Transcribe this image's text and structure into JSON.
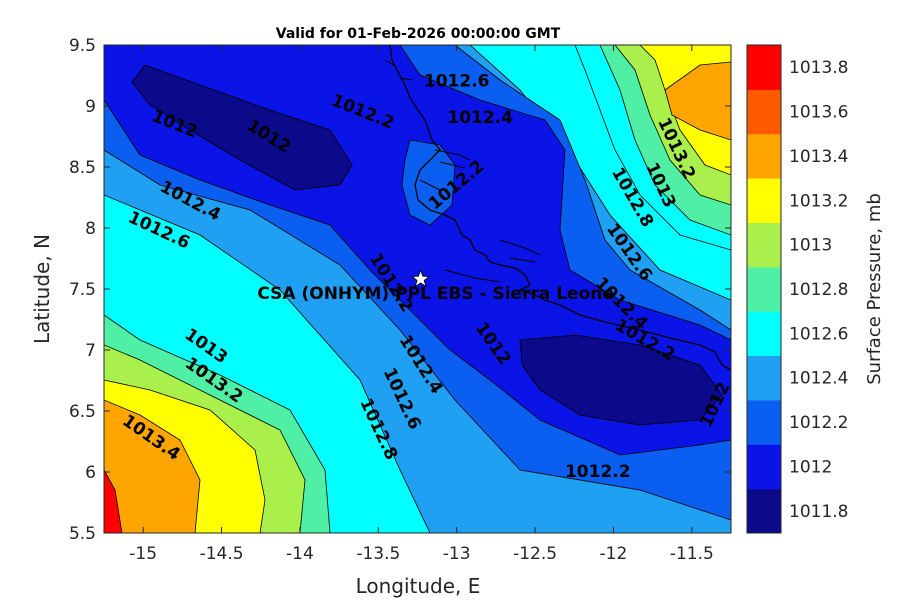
{
  "title": "Valid for 01-Feb-2026 00:00:00 GMT",
  "x_axis": {
    "label": "Longitude, E",
    "range": [
      -15.25,
      -11.25
    ],
    "ticks": [
      -15,
      -14.5,
      -14,
      -13.5,
      -13,
      -12.5,
      -12,
      -11.5
    ],
    "tick_labels": [
      "-15",
      "-14.5",
      "-14",
      "-13.5",
      "-13",
      "-12.5",
      "-12",
      "-11.5"
    ]
  },
  "y_axis": {
    "label": "Latitude, N",
    "range": [
      5.5,
      9.5
    ],
    "ticks": [
      5.5,
      6,
      6.5,
      7,
      7.5,
      8,
      8.5,
      9,
      9.5
    ],
    "tick_labels": [
      "5.5",
      "6",
      "6.5",
      "7",
      "7.5",
      "8",
      "8.5",
      "9",
      "9.5"
    ]
  },
  "colorbar": {
    "label": "Surface Pressure, mb",
    "levels": [
      1011.8,
      1012,
      1012.2,
      1012.4,
      1012.6,
      1012.8,
      1013,
      1013.2,
      1013.4,
      1013.6,
      1013.8
    ],
    "tick_labels": [
      "1011.8",
      "1012",
      "1012.2",
      "1012.4",
      "1012.6",
      "1012.8",
      "1013",
      "1013.2",
      "1013.4",
      "1013.6",
      "1013.8"
    ],
    "colors": [
      "#0a0a8a",
      "#0a14e6",
      "#0a5ff0",
      "#1fa0f2",
      "#00ffff",
      "#4ff0a6",
      "#aaf04c",
      "#ffff00",
      "#ffa500",
      "#ff5a00",
      "#ff0000"
    ]
  },
  "station": {
    "name": "CSA (ONHYM) PPL EBS  - Sierra Leone",
    "lon": -13.23,
    "lat": 7.58,
    "marker": "star-icon"
  },
  "contour_labels": [
    {
      "text": "1012.6",
      "lon": -13.0,
      "lat": 9.2,
      "rot": 0
    },
    {
      "text": "1012.4",
      "lon": -12.85,
      "lat": 8.9,
      "rot": 0
    },
    {
      "text": "1012.2",
      "lon": -13.6,
      "lat": 8.95,
      "rot": 22
    },
    {
      "text": "1012",
      "lon": -14.8,
      "lat": 8.85,
      "rot": 22
    },
    {
      "text": "1012",
      "lon": -14.2,
      "lat": 8.75,
      "rot": 32
    },
    {
      "text": "1012.2",
      "lon": -13.0,
      "lat": 8.35,
      "rot": -40
    },
    {
      "text": "1012.4",
      "lon": -14.7,
      "lat": 8.22,
      "rot": 28
    },
    {
      "text": "1012.6",
      "lon": -14.9,
      "lat": 7.98,
      "rot": 25
    },
    {
      "text": "1012.2",
      "lon": -13.42,
      "lat": 7.55,
      "rot": 58
    },
    {
      "text": "1012",
      "lon": -12.77,
      "lat": 7.05,
      "rot": 55
    },
    {
      "text": "1012.4",
      "lon": -13.23,
      "lat": 6.88,
      "rot": 58
    },
    {
      "text": "1012.6",
      "lon": -13.35,
      "lat": 6.6,
      "rot": 65
    },
    {
      "text": "1012.8",
      "lon": -13.5,
      "lat": 6.35,
      "rot": 65
    },
    {
      "text": "1013",
      "lon": -14.6,
      "lat": 7.03,
      "rot": 35
    },
    {
      "text": "1013.2",
      "lon": -14.55,
      "lat": 6.75,
      "rot": 35
    },
    {
      "text": "1013.4",
      "lon": -14.95,
      "lat": 6.28,
      "rot": 35
    },
    {
      "text": "1013.2",
      "lon": -11.6,
      "lat": 8.65,
      "rot": 65
    },
    {
      "text": "1013",
      "lon": -11.7,
      "lat": 8.35,
      "rot": 65
    },
    {
      "text": "1012.8",
      "lon": -11.88,
      "lat": 8.25,
      "rot": 60
    },
    {
      "text": "1012.6",
      "lon": -11.9,
      "lat": 7.8,
      "rot": 55
    },
    {
      "text": "1012.4",
      "lon": -11.95,
      "lat": 7.38,
      "rot": 45
    },
    {
      "text": "1012.2",
      "lon": -11.8,
      "lat": 7.08,
      "rot": 30
    },
    {
      "text": "1012.2",
      "lon": -12.1,
      "lat": 6.0,
      "rot": 0
    },
    {
      "text": "1012",
      "lon": -11.35,
      "lat": 6.55,
      "rot": -65
    }
  ]
}
